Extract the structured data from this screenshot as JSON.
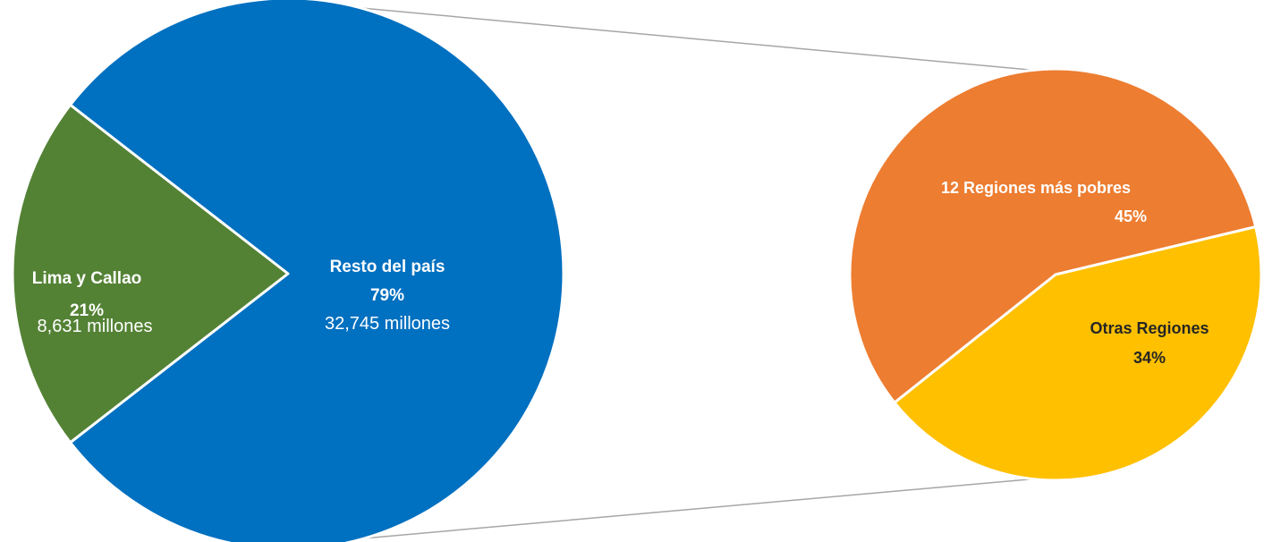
{
  "chart_data": [
    {
      "type": "pie",
      "title": "",
      "slices": [
        {
          "label": "Lima y Callao",
          "percent_label": "21%",
          "percent": 21,
          "amount_label": "8,631 millones",
          "amount": 8631,
          "color": "#548235"
        },
        {
          "label": "Resto del país",
          "percent_label": "79%",
          "percent": 79,
          "amount_label": "32,745 millones",
          "amount": 32745,
          "color": "#0070C0"
        }
      ]
    },
    {
      "type": "pie",
      "title": "",
      "breakdown_of": "Resto del país",
      "slices": [
        {
          "label": "12 Regiones más pobres",
          "percent_label": "45%",
          "percent": 45,
          "color": "#ED7D31"
        },
        {
          "label": "Otras Regiones",
          "percent_label": "34%",
          "percent": 34,
          "color": "#FFC000"
        }
      ]
    }
  ],
  "colors": {
    "connector": "#A6A6A6",
    "slice_border": "#FFFFFF",
    "label_light": "#FFFFFF",
    "label_dark": "#262626"
  }
}
